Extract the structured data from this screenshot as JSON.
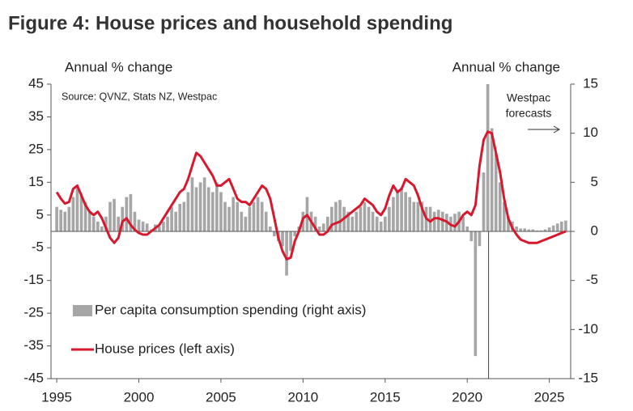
{
  "chart_data": {
    "type": "bar-line",
    "title": "Figure 4: House prices and household spending",
    "ylabel": "Annual % change",
    "y2label": "Annual % change",
    "source": "Source: QVNZ, Stats NZ, Westpac",
    "annotation": [
      "Westpac",
      "forecasts"
    ],
    "forecast_start": 2021.3,
    "xlim": [
      1994.65,
      2026.3
    ],
    "xticks": [
      1995,
      2000,
      2005,
      2010,
      2015,
      2020,
      2025
    ],
    "ylim": [
      -45,
      45
    ],
    "yticks": [
      45,
      35,
      25,
      15,
      5,
      -5,
      -15,
      -25,
      -35,
      -45
    ],
    "y2lim": [
      -15,
      15
    ],
    "y2ticks": [
      15,
      10,
      5,
      0,
      -5,
      -10,
      -15
    ],
    "x": [
      1995,
      1995.25,
      1995.5,
      1995.75,
      1996,
      1996.25,
      1996.5,
      1996.75,
      1997,
      1997.25,
      1997.5,
      1997.75,
      1998,
      1998.25,
      1998.5,
      1998.75,
      1999,
      1999.25,
      1999.5,
      1999.75,
      2000,
      2000.25,
      2000.5,
      2000.75,
      2001,
      2001.25,
      2001.5,
      2001.75,
      2002,
      2002.25,
      2002.5,
      2002.75,
      2003,
      2003.25,
      2003.5,
      2003.75,
      2004,
      2004.25,
      2004.5,
      2004.75,
      2005,
      2005.25,
      2005.5,
      2005.75,
      2006,
      2006.25,
      2006.5,
      2006.75,
      2007,
      2007.25,
      2007.5,
      2007.75,
      2008,
      2008.25,
      2008.5,
      2008.75,
      2009,
      2009.25,
      2009.5,
      2009.75,
      2010,
      2010.25,
      2010.5,
      2010.75,
      2011,
      2011.25,
      2011.5,
      2011.75,
      2012,
      2012.25,
      2012.5,
      2012.75,
      2013,
      2013.25,
      2013.5,
      2013.75,
      2014,
      2014.25,
      2014.5,
      2014.75,
      2015,
      2015.25,
      2015.5,
      2015.75,
      2016,
      2016.25,
      2016.5,
      2016.75,
      2017,
      2017.25,
      2017.5,
      2017.75,
      2018,
      2018.25,
      2018.5,
      2018.75,
      2019,
      2019.25,
      2019.5,
      2019.75,
      2020,
      2020.25,
      2020.5,
      2020.75,
      2021,
      2021.25,
      2021.5,
      2021.75,
      2022,
      2022.25,
      2022.5,
      2022.75,
      2023,
      2023.25,
      2023.5,
      2023.75,
      2024,
      2024.25,
      2024.5,
      2024.75,
      2025,
      2025.25,
      2025.5,
      2025.75,
      2026
    ],
    "series": [
      {
        "name": "Per capita consumption spending (right axis)",
        "color": "#a6a6a6",
        "axis": "y2",
        "kind": "bar",
        "values": [
          2.5,
          2.2,
          2.0,
          2.5,
          3.5,
          4.5,
          3.8,
          3.0,
          2.0,
          1.5,
          1.0,
          0.5,
          1.5,
          3.0,
          3.3,
          1.5,
          2.5,
          3.5,
          3.8,
          2.0,
          1.2,
          1.0,
          0.8,
          0.2,
          0.7,
          0.5,
          1.0,
          1.5,
          2.5,
          2.0,
          2.8,
          3.0,
          4.0,
          5.5,
          4.5,
          5.0,
          5.5,
          4.5,
          4.0,
          5.0,
          4.0,
          3.0,
          2.5,
          3.5,
          3.0,
          2.0,
          1.5,
          2.5,
          3.0,
          3.5,
          3.0,
          2.0,
          0.5,
          -0.5,
          -1.0,
          -1.5,
          -4.5,
          -2.0,
          -0.5,
          0.5,
          2.0,
          3.5,
          2.0,
          1.5,
          0.5,
          0.8,
          1.5,
          2.5,
          3.0,
          3.2,
          2.5,
          2.0,
          1.5,
          2.0,
          2.5,
          3.0,
          2.5,
          2.0,
          1.5,
          1.0,
          1.5,
          2.5,
          3.5,
          4.0,
          4.5,
          4.0,
          3.5,
          3.0,
          3.0,
          3.0,
          2.5,
          2.5,
          2.0,
          2.2,
          2.0,
          1.8,
          1.5,
          1.8,
          2.0,
          1.5,
          0.5,
          -1.0,
          -12.7,
          -1.5,
          6.0,
          15.0,
          10.5,
          8.0,
          5.0,
          3.0,
          1.5,
          1.0,
          0.5,
          0.3,
          0.3,
          0.2,
          0.2,
          0.1,
          0.1,
          0.2,
          0.4,
          0.6,
          0.8,
          1.0,
          1.1
        ]
      },
      {
        "name": "House prices (left axis)",
        "color": "#d7192d",
        "axis": "y",
        "kind": "line",
        "values": [
          12,
          10,
          8.5,
          9,
          13,
          14,
          11,
          8,
          6,
          5,
          6,
          4,
          1,
          -2,
          -3.5,
          -2,
          3,
          4,
          2,
          0.5,
          -0.5,
          -1,
          -1,
          0,
          1,
          2,
          4,
          6,
          8,
          10,
          12,
          13,
          16,
          20,
          24,
          23,
          21,
          19,
          17,
          14,
          14,
          15,
          16,
          13,
          10,
          9,
          9,
          8,
          10,
          12,
          14,
          13,
          10,
          4,
          -2,
          -6,
          -8.5,
          -8,
          -3,
          0,
          4,
          5,
          3,
          1,
          -1,
          -1,
          0,
          2,
          2.5,
          3,
          4,
          5,
          6,
          7,
          8,
          10,
          9,
          8,
          6,
          5,
          7,
          11,
          14,
          12,
          13,
          16,
          15,
          14,
          11,
          7,
          4,
          3,
          4,
          4,
          3.5,
          3,
          2,
          1.5,
          3,
          5,
          6,
          5,
          8,
          20,
          28,
          30.5,
          30,
          24,
          18,
          10,
          4,
          1,
          -1,
          -2.5,
          -3,
          -3.5,
          -3.5,
          -3.5,
          -3,
          -2.5,
          -2,
          -1.5,
          -1,
          -0.5,
          0
        ]
      }
    ]
  }
}
